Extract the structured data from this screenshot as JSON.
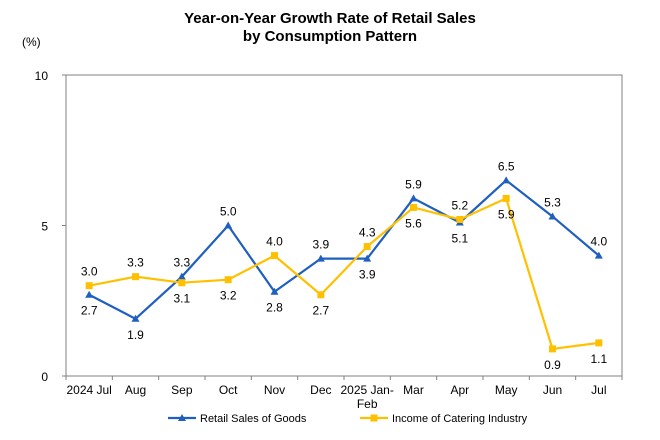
{
  "chart_data": {
    "type": "line",
    "title_line1": "Year-on-Year Growth Rate of Retail Sales",
    "title_line2": "by Consumption Pattern",
    "ylabel": "(%)",
    "ylim": [
      0,
      10
    ],
    "yticks": [
      0,
      5,
      10
    ],
    "grid": false,
    "legend_position": "bottom",
    "categories": [
      "2024 Jul",
      "Aug",
      "Sep",
      "Oct",
      "Nov",
      "Dec",
      "2025 Jan-Feb",
      "Mar",
      "Apr",
      "May",
      "Jun",
      "Jul"
    ],
    "category_lines": [
      [
        "2024 Jul"
      ],
      [
        "Aug"
      ],
      [
        "Sep"
      ],
      [
        "Oct"
      ],
      [
        "Nov"
      ],
      [
        "Dec"
      ],
      [
        "2025 Jan-",
        "Feb"
      ],
      [
        "Mar"
      ],
      [
        "Apr"
      ],
      [
        "May"
      ],
      [
        "Jun"
      ],
      [
        "Jul"
      ]
    ],
    "series": [
      {
        "name": "Retail Sales of Goods",
        "color": "#1f5fbf",
        "marker": "triangle",
        "values": [
          2.7,
          1.9,
          3.3,
          5.0,
          2.8,
          3.9,
          3.9,
          5.9,
          5.1,
          6.5,
          5.3,
          4.0
        ],
        "labels": [
          "2.7",
          "1.9",
          "3.3",
          "5.0",
          "2.8",
          "3.9",
          "3.9",
          "5.9",
          "5.1",
          "6.5",
          "5.3",
          "4.0"
        ]
      },
      {
        "name": "Income of Catering Industry",
        "color": "#ffc000",
        "marker": "square",
        "values": [
          3.0,
          3.3,
          3.1,
          3.2,
          4.0,
          2.7,
          4.3,
          5.6,
          5.2,
          5.9,
          0.9,
          1.1
        ],
        "labels": [
          "3.0",
          "3.3",
          "3.1",
          "3.2",
          "4.0",
          "2.7",
          "4.3",
          "5.6",
          "5.2",
          "5.9",
          "0.9",
          "1.1"
        ]
      }
    ]
  }
}
